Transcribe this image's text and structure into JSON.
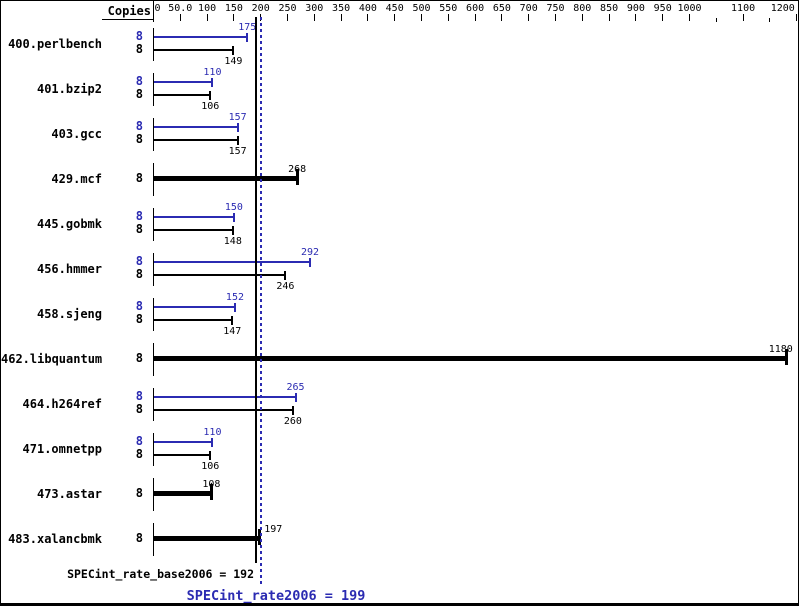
{
  "header": {
    "copies_label": "Copies"
  },
  "axis": {
    "min": 0,
    "max": 1200,
    "tick_step": 50,
    "tick_labels": [
      "0",
      "50.0",
      "100",
      "150",
      "200",
      "250",
      "300",
      "350",
      "400",
      "450",
      "500",
      "550",
      "600",
      "650",
      "700",
      "750",
      "800",
      "850",
      "900",
      "950",
      "1000",
      "1100",
      "1200"
    ],
    "unlabeled_ticks": [
      1050,
      1150
    ]
  },
  "chart_data": {
    "type": "bar",
    "orientation": "horizontal",
    "title": "",
    "xlabel": "Copies",
    "xlim": [
      0,
      1240
    ],
    "grid": false,
    "colors": {
      "peak": "#2b2bb2",
      "base": "#000000"
    },
    "benchmarks": [
      {
        "name": "400.perlbench",
        "copies": 8,
        "peak": 175,
        "base": 149
      },
      {
        "name": "401.bzip2",
        "copies": 8,
        "peak": 110,
        "base": 106
      },
      {
        "name": "403.gcc",
        "copies": 8,
        "peak": 157,
        "base": 157
      },
      {
        "name": "429.mcf",
        "copies": 8,
        "peak": null,
        "base": 268
      },
      {
        "name": "445.gobmk",
        "copies": 8,
        "peak": 150,
        "base": 148
      },
      {
        "name": "456.hmmer",
        "copies": 8,
        "peak": 292,
        "base": 246
      },
      {
        "name": "458.sjeng",
        "copies": 8,
        "peak": 152,
        "base": 147
      },
      {
        "name": "462.libquantum",
        "copies": 8,
        "peak": null,
        "base": 1180
      },
      {
        "name": "464.h264ref",
        "copies": 8,
        "peak": 265,
        "base": 260
      },
      {
        "name": "471.omnetpp",
        "copies": 8,
        "peak": 110,
        "base": 106
      },
      {
        "name": "473.astar",
        "copies": 8,
        "peak": null,
        "base": 108
      },
      {
        "name": "483.xalancbmk",
        "copies": 8,
        "peak": null,
        "base": 197
      }
    ],
    "reference_lines": [
      {
        "name": "base_mean",
        "value": 192,
        "style": "solid",
        "color": "#000000"
      },
      {
        "name": "peak_mean",
        "value": 199,
        "style": "dotted",
        "color": "#2b2bb2"
      }
    ]
  },
  "footer": {
    "base_summary": "SPECint_rate_base2006 = 192",
    "peak_summary": "SPECint_rate2006 = 199"
  }
}
